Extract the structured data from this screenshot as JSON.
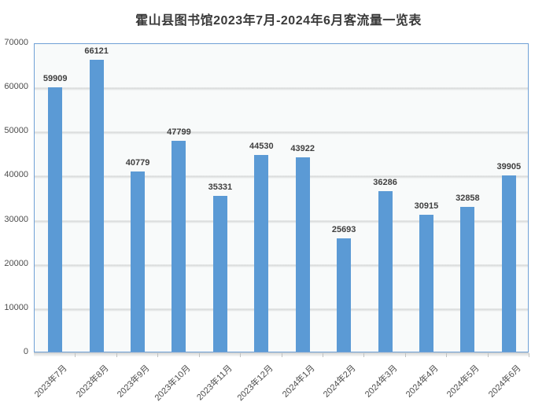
{
  "title": "霍山县图书馆2023年7月-2024年6月客流量一览表",
  "colors": {
    "bar": "#5b9ad5",
    "plot_border": "#6fa0d6",
    "plot_background": "#f8fafa",
    "gridline": "#d9dbdb",
    "data_label": "#3f3f3f",
    "axis_text": "#4d4d4d"
  },
  "chart_data": {
    "type": "bar",
    "title": "霍山县图书馆2023年7月-2024年6月客流量一览表",
    "categories": [
      "2023年7月",
      "2023年8月",
      "2023年9月",
      "2023年10月",
      "2023年11月",
      "2023年12月",
      "2024年1月",
      "2024年2月",
      "2024年3月",
      "2024年4月",
      "2024年5月",
      "2024年6月"
    ],
    "values": [
      59909,
      66121,
      40779,
      47799,
      35331,
      44530,
      43922,
      25693,
      36286,
      30915,
      32858,
      39905
    ],
    "data_labels": [
      "59909",
      "66121",
      "40779",
      "47799",
      "35331",
      "44530",
      "43922",
      "25693",
      "36286",
      "30915",
      "32858",
      "39905"
    ],
    "xlabel": "",
    "ylabel": "",
    "ylim": [
      0,
      70000
    ],
    "ytick_step": 10000,
    "ytick_labels": [
      "0",
      "10000",
      "20000",
      "30000",
      "40000",
      "50000",
      "60000",
      "70000"
    ],
    "grid": true,
    "legend": false,
    "bar_orientation": "vertical"
  }
}
